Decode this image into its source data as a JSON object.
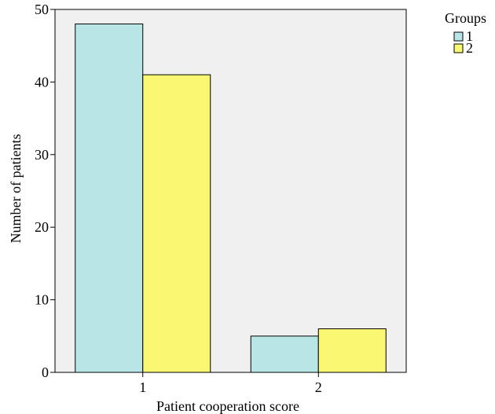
{
  "chart_data": {
    "type": "bar",
    "title": "",
    "xlabel": "Patient cooperation score",
    "ylabel": "Number of patients",
    "categories": [
      "1",
      "2"
    ],
    "ylim": [
      0,
      50
    ],
    "yticks": [
      0,
      10,
      20,
      30,
      40,
      50
    ],
    "grid": false,
    "legend": {
      "title": "Groups",
      "placement": "top-right-outside"
    },
    "series": [
      {
        "name": "1",
        "color": "#b8e6e6",
        "values": [
          48,
          5
        ]
      },
      {
        "name": "2",
        "color": "#faf772",
        "values": [
          41,
          6
        ]
      }
    ],
    "plot_background": "#f0f0f0"
  }
}
